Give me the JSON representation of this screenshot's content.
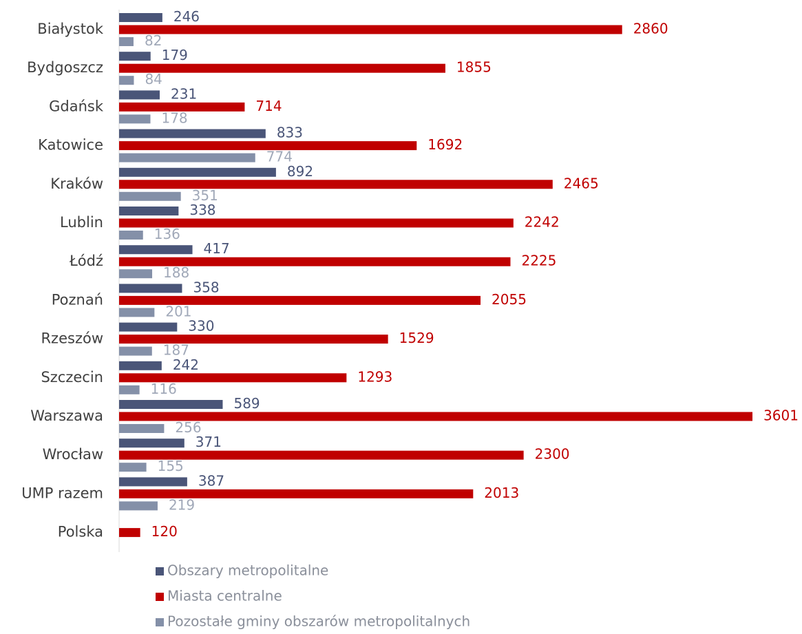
{
  "chart_data": {
    "type": "bar",
    "orientation": "horizontal",
    "categories": [
      "Białystok",
      "Bydgoszcz",
      "Gdańsk",
      "Katowice",
      "Kraków",
      "Lublin",
      "Łódź",
      "Poznań",
      "Rzeszów",
      "Szczecin",
      "Warszawa",
      "Wrocław",
      "UMP razem",
      "Polska"
    ],
    "series": [
      {
        "name": "Obszary metropolitalne",
        "color": "#4a5578",
        "values": [
          246,
          179,
          231,
          833,
          892,
          338,
          417,
          358,
          330,
          242,
          589,
          371,
          387,
          null
        ]
      },
      {
        "name": "Miasta centralne",
        "color": "#c00000",
        "values": [
          2860,
          1855,
          714,
          1692,
          2465,
          2242,
          2225,
          2055,
          1529,
          1293,
          3601,
          2300,
          2013,
          120
        ]
      },
      {
        "name": "Pozostałe gminy obszarów metropolitalnych",
        "color": "#8490a8",
        "values": [
          82,
          84,
          178,
          774,
          351,
          136,
          188,
          201,
          187,
          116,
          256,
          155,
          219,
          null
        ]
      }
    ],
    "xlim": [
      0,
      3824
    ],
    "legend": "bottom"
  }
}
